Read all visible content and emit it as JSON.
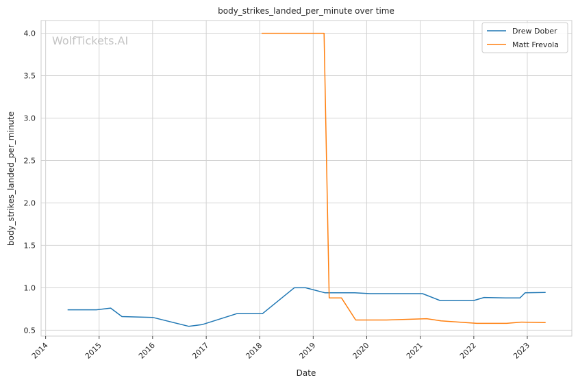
{
  "chart_data": {
    "type": "line",
    "title": "body_strikes_landed_per_minute over time",
    "xlabel": "Date",
    "ylabel": "body_strikes_landed_per_minute",
    "watermark": "WolfTickets.AI",
    "x_tick_labels": [
      "2014",
      "2015",
      "2016",
      "2017",
      "2018",
      "2019",
      "2020",
      "2021",
      "2022",
      "2023"
    ],
    "y_tick_labels": [
      "0.5",
      "1.0",
      "1.5",
      "2.0",
      "2.5",
      "3.0",
      "3.5",
      "4.0"
    ],
    "xlim": [
      "2013-12-01",
      "2023-11-01"
    ],
    "ylim": [
      0.43,
      4.15
    ],
    "grid": true,
    "legend_position": "top-right",
    "series": [
      {
        "name": "Drew Dober",
        "color": "#1f77b4",
        "points": [
          [
            "2014-05-31",
            0.74
          ],
          [
            "2014-12-13",
            0.74
          ],
          [
            "2015-03-21",
            0.76
          ],
          [
            "2015-06-06",
            0.66
          ],
          [
            "2016-01-02",
            0.65
          ],
          [
            "2016-09-03",
            0.545
          ],
          [
            "2016-12-03",
            0.565
          ],
          [
            "2017-07-29",
            0.695
          ],
          [
            "2018-01-20",
            0.695
          ],
          [
            "2018-08-25",
            1.0
          ],
          [
            "2018-11-10",
            1.0
          ],
          [
            "2019-03-23",
            0.94
          ],
          [
            "2019-10-12",
            0.94
          ],
          [
            "2020-01-25",
            0.93
          ],
          [
            "2021-01-16",
            0.93
          ],
          [
            "2021-05-15",
            0.85
          ],
          [
            "2022-01-01",
            0.85
          ],
          [
            "2022-03-12",
            0.885
          ],
          [
            "2022-08-06",
            0.88
          ],
          [
            "2022-11-12",
            0.88
          ],
          [
            "2022-12-17",
            0.94
          ],
          [
            "2023-05-06",
            0.945
          ]
        ]
      },
      {
        "name": "Matt Frevola",
        "color": "#ff7f0e",
        "points": [
          [
            "2018-01-14",
            4.0
          ],
          [
            "2019-03-16",
            4.0
          ],
          [
            "2019-04-20",
            0.88
          ],
          [
            "2019-07-13",
            0.88
          ],
          [
            "2019-10-18",
            0.62
          ],
          [
            "2020-05-16",
            0.62
          ],
          [
            "2021-02-13",
            0.635
          ],
          [
            "2021-05-22",
            0.61
          ],
          [
            "2022-01-22",
            0.58
          ],
          [
            "2022-08-13",
            0.58
          ],
          [
            "2022-11-19",
            0.595
          ],
          [
            "2023-05-06",
            0.59
          ]
        ]
      }
    ]
  }
}
